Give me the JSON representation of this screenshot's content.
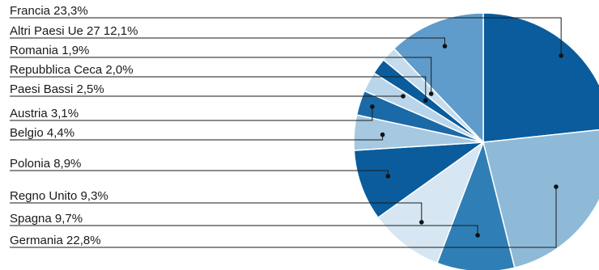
{
  "chart_data": {
    "type": "pie",
    "title": "",
    "legend": "left",
    "slices": [
      {
        "label": "Francia",
        "text": "Francia 23,3%",
        "value": 23.3,
        "color": "#0a5c9c"
      },
      {
        "label": "Germania",
        "text": "Germania 22,8%",
        "value": 22.8,
        "color": "#8ebad8"
      },
      {
        "label": "Spagna",
        "text": "Spagna 9,7%",
        "value": 9.7,
        "color": "#2f7fb6"
      },
      {
        "label": "Regno Unito",
        "text": "Regno Unito 9,3%",
        "value": 9.3,
        "color": "#d6e6f2"
      },
      {
        "label": "Polonia",
        "text": "Polonia 8,9%",
        "value": 8.9,
        "color": "#0a5c9c"
      },
      {
        "label": "Belgio",
        "text": "Belgio 4,4%",
        "value": 4.4,
        "color": "#a6c8e1"
      },
      {
        "label": "Austria",
        "text": "Austria 3,1%",
        "value": 3.1,
        "color": "#1b6aa8"
      },
      {
        "label": "Paesi Bassi",
        "text": "Paesi Bassi 2,5%",
        "value": 2.5,
        "color": "#b9d5ea"
      },
      {
        "label": "Repubblica Ceca",
        "text": "Repubblica Ceca 2,0%",
        "value": 2.0,
        "color": "#0a5c9c"
      },
      {
        "label": "Romania",
        "text": "Romania 1,9%",
        "value": 1.9,
        "color": "#c4dcee"
      },
      {
        "label": "Altri Paesi Ue 27",
        "text": "Altri Paesi Ue 27 12,1%",
        "value": 12.1,
        "color": "#5f9ccb"
      }
    ]
  }
}
